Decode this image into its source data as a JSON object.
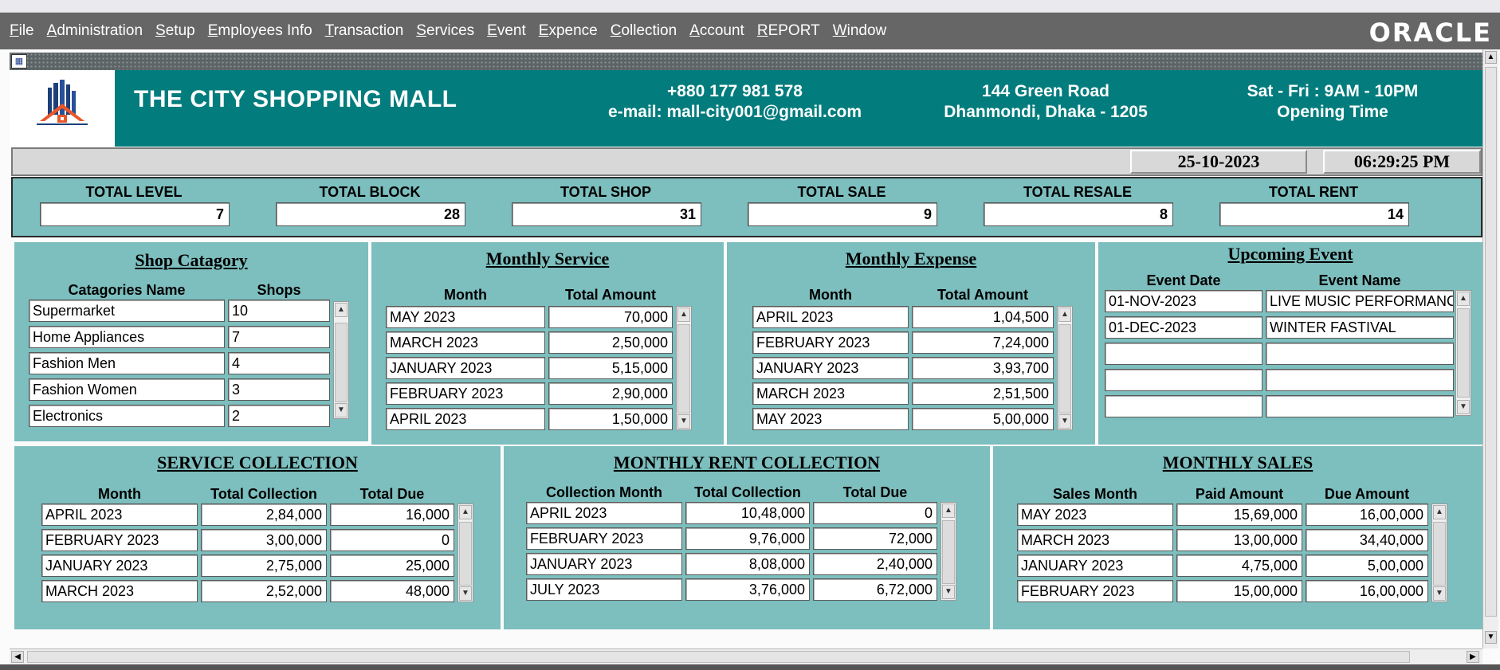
{
  "menu": {
    "items": [
      {
        "m": "F",
        "rest": "ile"
      },
      {
        "m": "A",
        "rest": "dministration"
      },
      {
        "m": "S",
        "rest": "etup"
      },
      {
        "m": "E",
        "rest": "mployees Info"
      },
      {
        "m": "T",
        "rest": "ransaction"
      },
      {
        "m": "S",
        "rest": "ervices"
      },
      {
        "m": "E",
        "rest": "vent"
      },
      {
        "m": "E",
        "rest": "xpence"
      },
      {
        "m": "C",
        "rest": "ollection"
      },
      {
        "m": "A",
        "rest": "ccount"
      },
      {
        "m": "R",
        "rest": "EPORT"
      },
      {
        "m": "W",
        "rest": "indow"
      }
    ],
    "brand": "ORACLE"
  },
  "header": {
    "title": "THE CITY SHOPPING MALL",
    "phone": "+880 177 981 578",
    "email": "e-mail: mall-city001@gmail.com",
    "address1": "144 Green Road",
    "address2": "Dhanmondi, Dhaka - 1205",
    "hours": "Sat - Fri : 9AM - 10PM",
    "hours_label": "Opening Time"
  },
  "datetime": {
    "date": "25-10-2023",
    "time": "06:29:25 PM"
  },
  "totals": [
    {
      "label": "TOTAL LEVEL",
      "value": "7"
    },
    {
      "label": "TOTAL BLOCK",
      "value": "28"
    },
    {
      "label": "TOTAL SHOP",
      "value": "31"
    },
    {
      "label": "TOTAL SALE",
      "value": "9"
    },
    {
      "label": "TOTAL RESALE",
      "value": "8"
    },
    {
      "label": "TOTAL RENT",
      "value": "14"
    }
  ],
  "shop_category": {
    "title": "Shop Catagory",
    "headers": [
      "Catagories Name",
      "Shops"
    ],
    "rows": [
      [
        "Supermarket",
        "10"
      ],
      [
        "Home Appliances",
        "7"
      ],
      [
        "Fashion Men",
        "4"
      ],
      [
        "Fashion Women",
        "3"
      ],
      [
        "Electronics",
        "2"
      ]
    ]
  },
  "monthly_service": {
    "title": "Monthly Service",
    "headers": [
      "Month",
      "Total Amount"
    ],
    "rows": [
      [
        "MAY     2023",
        "70,000"
      ],
      [
        "MARCH    2023",
        "2,50,000"
      ],
      [
        "JANUARY  2023",
        "5,15,000"
      ],
      [
        "FEBRUARY 2023",
        "2,90,000"
      ],
      [
        "APRIL    2023",
        "1,50,000"
      ]
    ]
  },
  "monthly_expense": {
    "title": "Monthly Expense",
    "headers": [
      "Month",
      "Total Amount"
    ],
    "rows": [
      [
        "APRIL    2023",
        "1,04,500"
      ],
      [
        "FEBRUARY 2023",
        "7,24,000"
      ],
      [
        "JANUARY  2023",
        "3,93,700"
      ],
      [
        "MARCH    2023",
        "2,51,500"
      ],
      [
        "MAY      2023",
        "5,00,000"
      ]
    ]
  },
  "upcoming_event": {
    "title": "Upcoming Event",
    "headers": [
      "Event Date",
      "Event Name"
    ],
    "rows": [
      [
        "01-NOV-2023",
        "LIVE MUSIC PERFORMANCE"
      ],
      [
        "01-DEC-2023",
        "WINTER FASTIVAL"
      ],
      [
        "",
        ""
      ],
      [
        "",
        ""
      ],
      [
        "",
        ""
      ]
    ]
  },
  "service_collection": {
    "title": "SERVICE COLLECTION",
    "headers": [
      "Month",
      "Total Collection",
      "Total Due"
    ],
    "rows": [
      [
        "APRIL    2023",
        "2,84,000",
        "16,000"
      ],
      [
        "FEBRUARY 2023",
        "3,00,000",
        "0"
      ],
      [
        "JANUARY  2023",
        "2,75,000",
        "25,000"
      ],
      [
        "MARCH    2023",
        "2,52,000",
        "48,000"
      ]
    ]
  },
  "monthly_rent": {
    "title": "MONTHLY RENT COLLECTION",
    "headers": [
      "Collection Month",
      "Total Collection",
      "Total Due"
    ],
    "rows": [
      [
        "APRIL    2023",
        "10,48,000",
        "0"
      ],
      [
        "FEBRUARY 2023",
        "9,76,000",
        "72,000"
      ],
      [
        "JANUARY  2023",
        "8,08,000",
        "2,40,000"
      ],
      [
        "JULY     2023",
        "3,76,000",
        "6,72,000"
      ]
    ]
  },
  "monthly_sales": {
    "title": "MONTHLY SALES",
    "headers": [
      "Sales Month",
      "Paid Amount",
      "Due Amount"
    ],
    "rows": [
      [
        "MAY      2023",
        "15,69,000",
        "16,00,000"
      ],
      [
        "MARCH    2023",
        "13,00,000",
        "34,40,000"
      ],
      [
        "JANUARY  2023",
        "4,75,000",
        "5,00,000"
      ],
      [
        "FEBRUARY 2023",
        "15,00,000",
        "16,00,000"
      ]
    ]
  },
  "colors": {
    "header_teal": "#037c7d",
    "panel_teal": "#7dbebe",
    "menubar": "#666666"
  }
}
